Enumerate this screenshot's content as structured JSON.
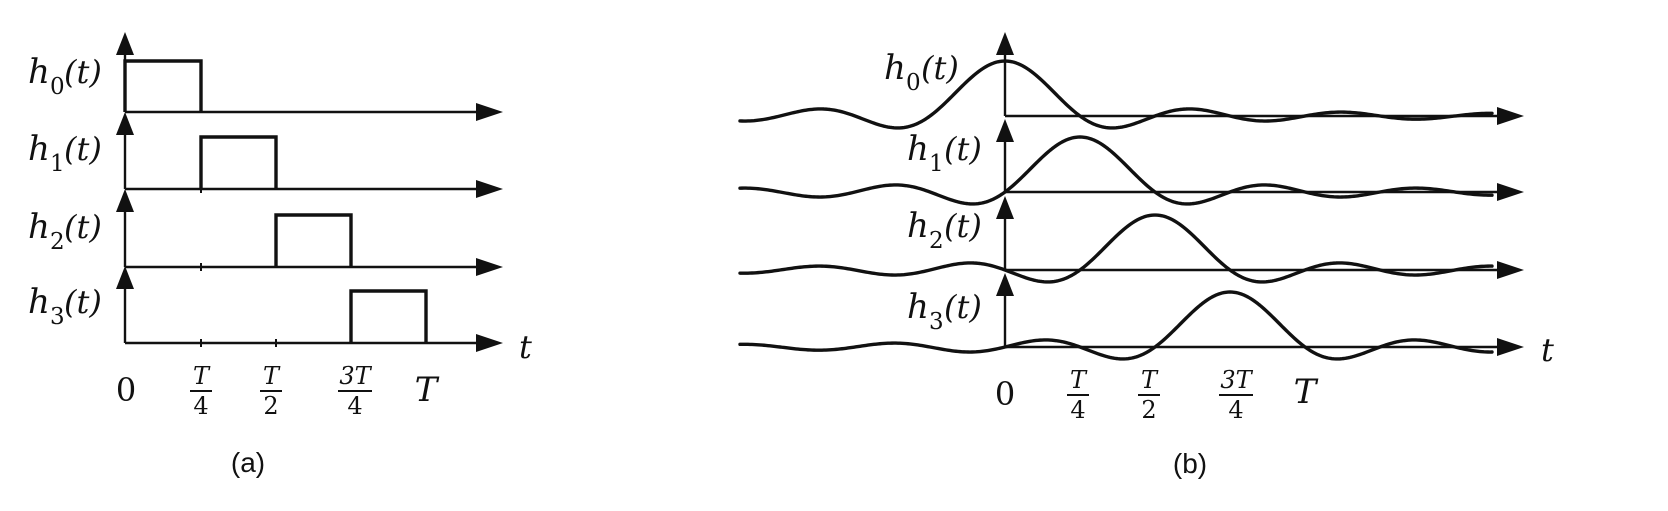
{
  "panel_a": {
    "caption": "(a)",
    "axis_var": "t",
    "rows": [
      {
        "func": "h",
        "sub": "0",
        "arg": "(t)",
        "pulse_start": 0,
        "pulse_end": 0.25
      },
      {
        "func": "h",
        "sub": "1",
        "arg": "(t)",
        "pulse_start": 0.25,
        "pulse_end": 0.5
      },
      {
        "func": "h",
        "sub": "2",
        "arg": "(t)",
        "pulse_start": 0.5,
        "pulse_end": 0.75
      },
      {
        "func": "h",
        "sub": "3",
        "arg": "(t)",
        "pulse_start": 0.75,
        "pulse_end": 1.0
      }
    ],
    "ticks": {
      "zero": "0",
      "quarter_num": "T",
      "quarter_den": "4",
      "half_num": "T",
      "half_den": "2",
      "threequarter_num": "3T",
      "threequarter_den": "4",
      "full": "T"
    }
  },
  "panel_b": {
    "caption": "(b)",
    "axis_var": "t",
    "rows": [
      {
        "func": "h",
        "sub": "0",
        "arg": "(t)",
        "center": 0
      },
      {
        "func": "h",
        "sub": "1",
        "arg": "(t)",
        "center": 0.25
      },
      {
        "func": "h",
        "sub": "2",
        "arg": "(t)",
        "center": 0.5
      },
      {
        "func": "h",
        "sub": "3",
        "arg": "(t)",
        "center": 0.75
      }
    ],
    "ticks": {
      "zero": "0",
      "quarter_num": "T",
      "quarter_den": "4",
      "half_num": "T",
      "half_den": "2",
      "threequarter_num": "3T",
      "threequarter_den": "4",
      "full": "T"
    }
  }
}
